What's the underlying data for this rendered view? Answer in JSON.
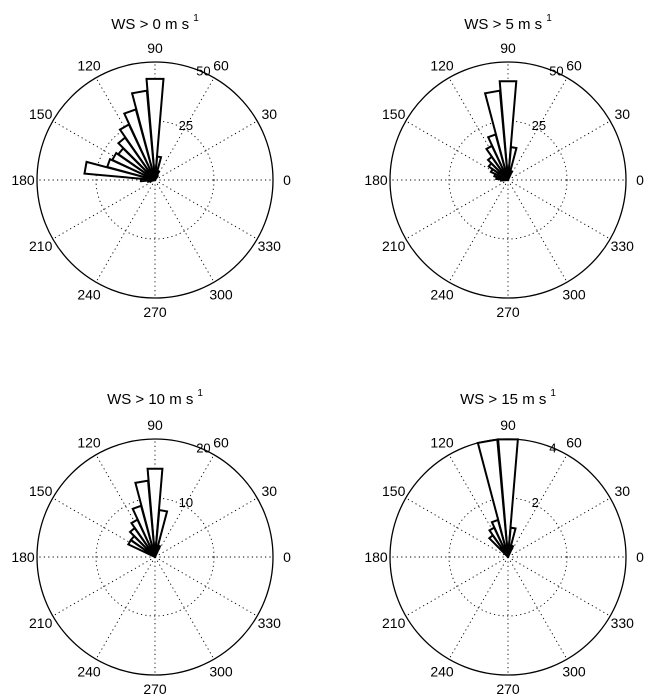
{
  "chart_data": [
    {
      "type": "polar-rose",
      "title": "WS > 0 m s",
      "title_superscript": "1",
      "angle_ticks": [
        "0",
        "30",
        "60",
        "90",
        "120",
        "150",
        "180",
        "210",
        "240",
        "270",
        "300",
        "330"
      ],
      "radial_ticks": [
        "25",
        "50"
      ],
      "rmax": 50,
      "bins": [
        {
          "angle": 90,
          "value": 43
        },
        {
          "angle": 100,
          "value": 38
        },
        {
          "angle": 110,
          "value": 31
        },
        {
          "angle": 120,
          "value": 26
        },
        {
          "angle": 130,
          "value": 22
        },
        {
          "angle": 140,
          "value": 19
        },
        {
          "angle": 150,
          "value": 20
        },
        {
          "angle": 160,
          "value": 21
        },
        {
          "angle": 170,
          "value": 30
        },
        {
          "angle": 180,
          "value": 6
        },
        {
          "angle": 190,
          "value": 3
        },
        {
          "angle": 80,
          "value": 10
        },
        {
          "angle": 70,
          "value": 4
        },
        {
          "angle": 60,
          "value": 2
        }
      ]
    },
    {
      "type": "polar-rose",
      "title": "WS > 5 m s",
      "title_superscript": "1",
      "angle_ticks": [
        "0",
        "30",
        "60",
        "90",
        "120",
        "150",
        "180",
        "210",
        "240",
        "270",
        "300",
        "330"
      ],
      "radial_ticks": [
        "25",
        "50"
      ],
      "rmax": 50,
      "bins": [
        {
          "angle": 90,
          "value": 42
        },
        {
          "angle": 100,
          "value": 38
        },
        {
          "angle": 110,
          "value": 20
        },
        {
          "angle": 120,
          "value": 16
        },
        {
          "angle": 130,
          "value": 12
        },
        {
          "angle": 140,
          "value": 10
        },
        {
          "angle": 150,
          "value": 8
        },
        {
          "angle": 160,
          "value": 6
        },
        {
          "angle": 170,
          "value": 5
        },
        {
          "angle": 180,
          "value": 3
        },
        {
          "angle": 80,
          "value": 14
        },
        {
          "angle": 70,
          "value": 4
        }
      ]
    },
    {
      "type": "polar-rose",
      "title": "WS > 10 m s",
      "title_superscript": "1",
      "angle_ticks": [
        "0",
        "30",
        "60",
        "90",
        "120",
        "150",
        "180",
        "210",
        "240",
        "270",
        "300",
        "330"
      ],
      "radial_ticks": [
        "10",
        "20"
      ],
      "rmax": 20,
      "bins": [
        {
          "angle": 90,
          "value": 15
        },
        {
          "angle": 100,
          "value": 13
        },
        {
          "angle": 110,
          "value": 9
        },
        {
          "angle": 120,
          "value": 7
        },
        {
          "angle": 130,
          "value": 6
        },
        {
          "angle": 140,
          "value": 5
        },
        {
          "angle": 150,
          "value": 5
        },
        {
          "angle": 80,
          "value": 8
        },
        {
          "angle": 70,
          "value": 2
        }
      ]
    },
    {
      "type": "polar-rose",
      "title": "WS > 15 m s",
      "title_superscript": "1",
      "angle_ticks": [
        "0",
        "30",
        "60",
        "90",
        "120",
        "150",
        "180",
        "210",
        "240",
        "270",
        "300",
        "330"
      ],
      "radial_ticks": [
        "2",
        "4"
      ],
      "rmax": 4,
      "bins": [
        {
          "angle": 90,
          "value": 4
        },
        {
          "angle": 100,
          "value": 4
        },
        {
          "angle": 110,
          "value": 1.3
        },
        {
          "angle": 120,
          "value": 1.1
        },
        {
          "angle": 130,
          "value": 0.9
        },
        {
          "angle": 80,
          "value": 1.0
        },
        {
          "angle": 70,
          "value": 0.4
        }
      ]
    }
  ]
}
